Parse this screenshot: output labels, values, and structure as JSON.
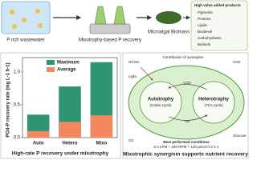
{
  "chart_data": {
    "type": "bar",
    "ylabel": "PO4-P recovery rate (mg L-1 h-1)",
    "caption": "High-rate P recovery under mixotrophy",
    "categories": [
      "Auto",
      "Hetero",
      "Mixo"
    ],
    "series": [
      {
        "name": "Maximum",
        "color": "#2e9473",
        "values": [
          0.35,
          0.78,
          1.15
        ]
      },
      {
        "name": "Average",
        "color": "#f4875f",
        "values": [
          0.1,
          0.24,
          0.34
        ]
      }
    ],
    "ylim": [
      0,
      1.22
    ],
    "yticks": [
      {
        "value": 0,
        "label": "0.0"
      },
      {
        "value": 0.5,
        "label": "0.5"
      },
      {
        "value": 1,
        "label": "1.0"
      }
    ],
    "legend": "upper-left",
    "overlap": true
  },
  "flow": {
    "wastewater": "P rich wastewater",
    "process": "Mixotrophy-based P recovery",
    "biomass": "Microalgal Biomass"
  },
  "products": {
    "title": "High value added products",
    "items": [
      "Pigments",
      "Proteins",
      "Lipids",
      "Biodiesel",
      "Carbohydrates",
      "Biofuels"
    ]
  },
  "synergy": {
    "caption": "Mixotrophic synergism supports nutrient recovery",
    "contribution": "Contribution of synergism",
    "hco3": "HCO3-",
    "co2_top": "CO2",
    "co2_mid": "CO2",
    "o2": "O2",
    "o2_out": "O2",
    "autotrophy": "Autotrophy",
    "calvin": "(Calvin cycle)",
    "heterotrophy": "Heterotrophy",
    "tca": "(TCA cycle)",
    "light": "Light",
    "glucose": "Glucose",
    "best": "Best performed conditions",
    "conditions": "0.4 LPM + 200 RPM + 120 μmol m-2 s-1"
  }
}
